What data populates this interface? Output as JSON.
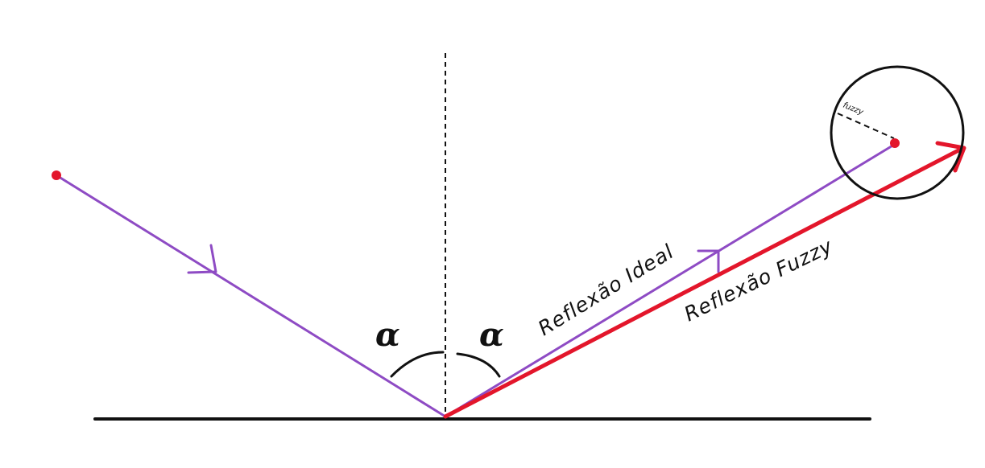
{
  "labels": {
    "ideal_reflection": "Reflexão Ideal",
    "fuzzy_reflection": "Reflexão Fuzzy",
    "fuzzy_radius": "fuzzy",
    "angle_left": "α",
    "angle_right": "α"
  },
  "colors": {
    "ray": "#8e4bc4",
    "fuzzy_ray": "#e3162b",
    "point": "#e3162b",
    "surface": "#111111",
    "normal": "#111111"
  },
  "icons": {
    "incident_arrow": "chevron-arrow-icon",
    "reflected_arrow": "chevron-arrow-icon",
    "fuzzy_arrow": "arrowhead-icon"
  }
}
